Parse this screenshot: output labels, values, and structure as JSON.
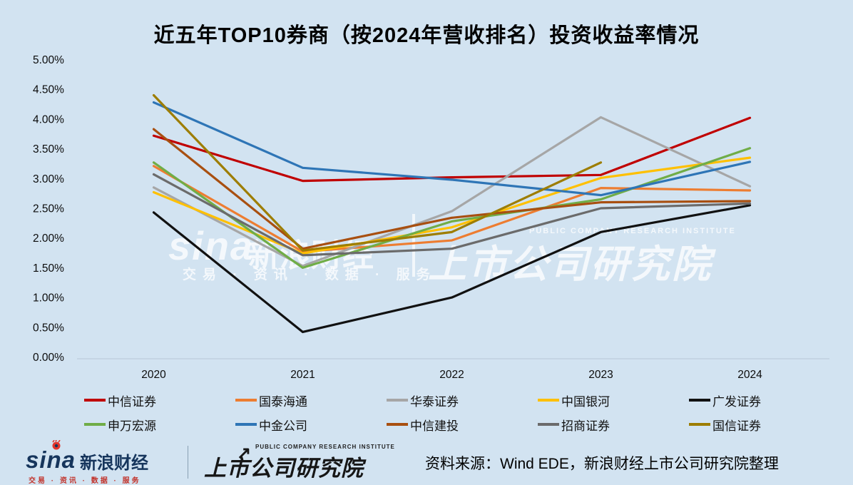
{
  "title": "近五年TOP10券商（按2024年营收排名）投资收益率情况",
  "colors": {
    "background": "#d2e3f1",
    "axis_line": "#b8c7d6",
    "title_text": "#000000"
  },
  "chart_data": {
    "type": "line",
    "title": "近五年TOP10券商（按2024年营收排名）投资收益率情况",
    "x": [
      "2020",
      "2021",
      "2022",
      "2023",
      "2024"
    ],
    "xlabel": "",
    "ylabel": "",
    "ylim": [
      0,
      5
    ],
    "y_unit": "%",
    "y_tick_labels": [
      "5.00%",
      "4.50%",
      "4.00%",
      "3.50%",
      "3.00%",
      "2.50%",
      "2.00%",
      "1.50%",
      "1.00%",
      "0.50%",
      "0.00%"
    ],
    "grid": "baseline-only",
    "legend_position": "bottom-two-rows",
    "series": [
      {
        "name": "中信证券",
        "color": "#C00000",
        "values": [
          3.72,
          2.96,
          3.02,
          3.06,
          4.02
        ]
      },
      {
        "name": "国泰海通",
        "color": "#ED7D31",
        "values": [
          3.21,
          1.77,
          1.96,
          2.84,
          2.8
        ]
      },
      {
        "name": "华泰证券",
        "color": "#A6A6A6",
        "values": [
          2.85,
          1.53,
          2.45,
          4.03,
          2.87
        ]
      },
      {
        "name": "中国银河",
        "color": "#FFC000",
        "values": [
          2.77,
          1.74,
          2.18,
          3.01,
          3.35
        ]
      },
      {
        "name": "广发证券",
        "color": "#111111",
        "values": [
          2.43,
          0.42,
          1.0,
          2.1,
          2.55
        ]
      },
      {
        "name": "申万宏源",
        "color": "#70AD47",
        "values": [
          3.27,
          1.5,
          2.28,
          2.65,
          3.51
        ]
      },
      {
        "name": "中金公司",
        "color": "#2E75B6",
        "values": [
          4.28,
          3.18,
          2.98,
          2.72,
          3.28
        ]
      },
      {
        "name": "中信建投",
        "color": "#A84F10",
        "values": [
          3.83,
          1.82,
          2.34,
          2.6,
          2.62
        ]
      },
      {
        "name": "招商证券",
        "color": "#6B6B6B",
        "values": [
          3.07,
          1.71,
          1.82,
          2.5,
          2.58
        ]
      },
      {
        "name": "国信证券",
        "color": "#9D7D00",
        "values": [
          4.4,
          1.79,
          2.1,
          3.27,
          null
        ]
      }
    ]
  },
  "watermark": {
    "sina": "sina",
    "caijing": "新浪财经",
    "tagline": "交易 · 资讯 · 数据 · 服务",
    "institute": "上市公司研究院",
    "institute_en": "PUBLIC COMPANY RESEARCH INSTITUTE"
  },
  "footer": {
    "sina": "sina",
    "sina_cn": "新浪财经",
    "sina_tagline": "交易 · 资讯 · 数据 · 服务",
    "institute": "上市公司研究院",
    "institute_en": "PUBLIC COMPANY RESEARCH INSTITUTE",
    "arrow": "↗",
    "source": "资料来源：Wind EDE，新浪财经上市公司研究院整理"
  }
}
